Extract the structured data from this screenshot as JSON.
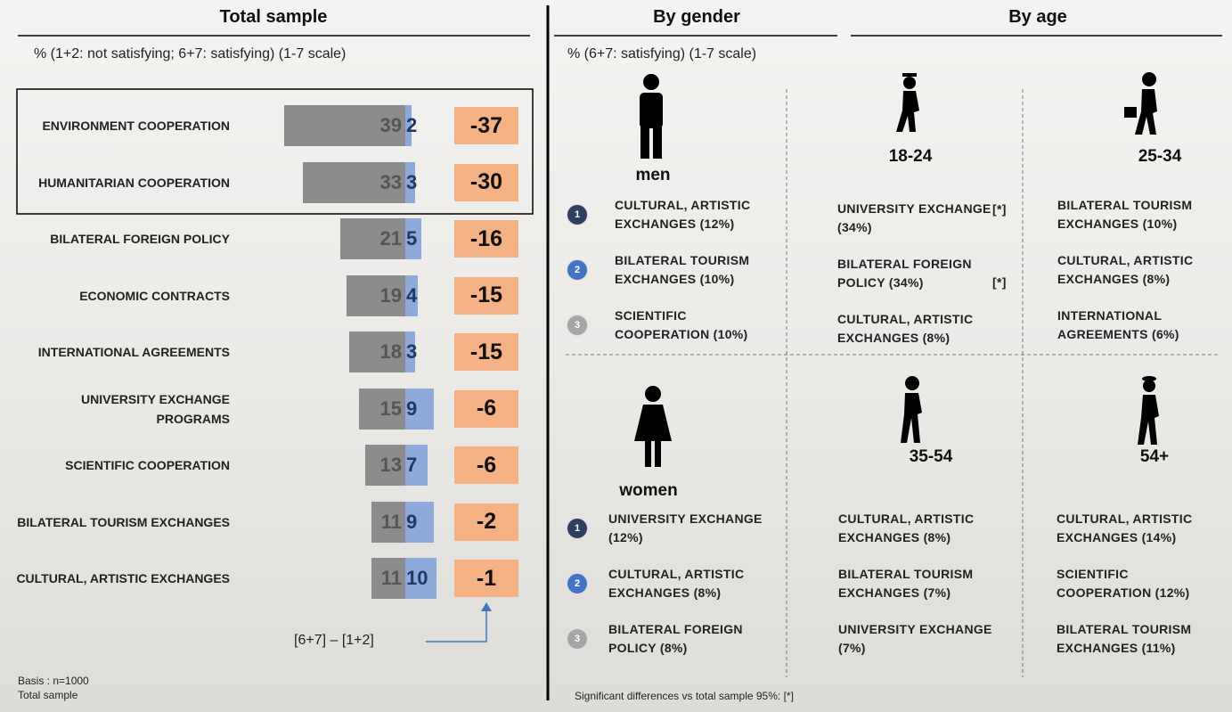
{
  "chart_data": {
    "type": "diverging-bar",
    "title": "Total sample",
    "subtitle": "% (1+2: not satisfying; 6+7: satisfying) (1-7 scale)",
    "categories": [
      "ENVIRONMENT COOPERATION",
      "HUMANITARIAN COOPERATION",
      "BILATERAL FOREIGN POLICY",
      "ECONOMIC CONTRACTS",
      "INTERNATIONAL AGREEMENTS",
      "UNIVERSITY EXCHANGE PROGRAMS",
      "SCIENTIFIC COOPERATION",
      "BILATERAL TOURISM EXCHANGES",
      "CULTURAL, ARTISTIC EXCHANGES"
    ],
    "series": [
      {
        "color": "#8c8c8c",
        "values": [
          39,
          33,
          21,
          19,
          18,
          15,
          13,
          11,
          11
        ]
      },
      {
        "color": "#8eaadb",
        "values": [
          2,
          3,
          5,
          4,
          3,
          9,
          7,
          9,
          10
        ]
      }
    ],
    "differences": {
      "color": "#f4b183",
      "values": [
        -37,
        -30,
        -16,
        -15,
        -15,
        -6,
        -6,
        -2,
        -1
      ]
    },
    "annotation": "[6+7] – [1+2]",
    "notes": [
      "Basis : n=1000",
      "Total sample"
    ]
  },
  "right": {
    "gender_title": "By gender",
    "age_title": "By age",
    "subtitle": "% (6+7: satisfying) (1-7 scale)",
    "ranks": [
      "1",
      "2",
      "3"
    ],
    "groups": [
      {
        "label": "men",
        "items": [
          {
            "text": "CULTURAL, ARTISTIC EXCHANGES (12%)"
          },
          {
            "text": "BILATERAL TOURISM EXCHANGES (10%)"
          },
          {
            "text": "SCIENTIFIC COOPERATION (10%)"
          }
        ]
      },
      {
        "label": "18-24",
        "items": [
          {
            "text": "UNIVERSITY EXCHANGE (34%)",
            "flag": "[*]"
          },
          {
            "text": "BILATERAL FOREIGN POLICY (34%)",
            "flag": "[*]"
          },
          {
            "text": "CULTURAL, ARTISTIC EXCHANGES (8%)"
          }
        ]
      },
      {
        "label": "25-34",
        "items": [
          {
            "text": "BILATERAL TOURISM EXCHANGES (10%)"
          },
          {
            "text": "CULTURAL, ARTISTIC EXCHANGES (8%)"
          },
          {
            "text": "INTERNATIONAL AGREEMENTS (6%)"
          }
        ]
      },
      {
        "label": "women",
        "items": [
          {
            "text": "UNIVERSITY EXCHANGE (12%)"
          },
          {
            "text": "CULTURAL, ARTISTIC EXCHANGES (8%)"
          },
          {
            "text": "BILATERAL FOREIGN POLICY (8%)"
          }
        ]
      },
      {
        "label": "35-54",
        "items": [
          {
            "text": "CULTURAL, ARTISTIC EXCHANGES (8%)"
          },
          {
            "text": "BILATERAL TOURISM EXCHANGES (7%)"
          },
          {
            "text": "UNIVERSITY EXCHANGE (7%)"
          }
        ]
      },
      {
        "label": "54+",
        "items": [
          {
            "text": "CULTURAL, ARTISTIC EXCHANGES (14%)"
          },
          {
            "text": "SCIENTIFIC COOPERATION (12%)"
          },
          {
            "text": "BILATERAL TOURISM EXCHANGES (11%)"
          }
        ]
      }
    ],
    "footnote": "Significant differences vs total sample 95%: [*]"
  }
}
